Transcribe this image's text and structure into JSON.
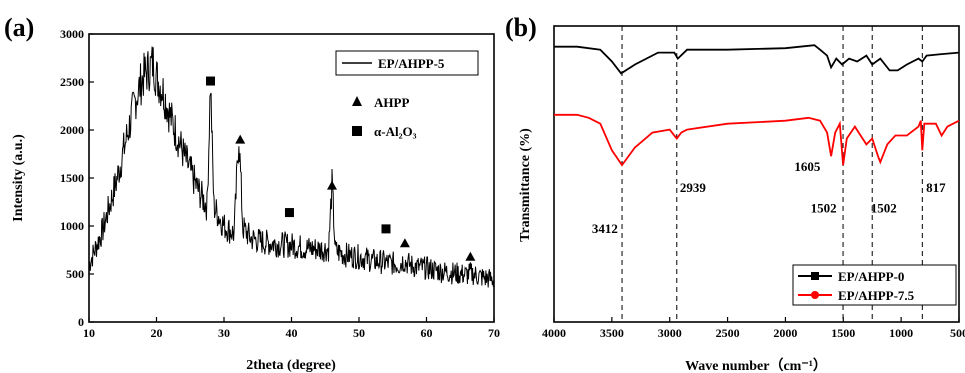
{
  "chart_data": [
    {
      "panel": "(a)",
      "type": "line",
      "xlabel": "2theta (degree)",
      "ylabel": "Intensity (a.u.)",
      "xlim": [
        10,
        70
      ],
      "ylim": [
        0,
        3000
      ],
      "xticks": [
        10,
        20,
        30,
        40,
        50,
        60,
        70
      ],
      "yticks": [
        0,
        500,
        1000,
        1500,
        2000,
        2500,
        3000
      ],
      "legend": {
        "position": "top-right",
        "entries": [
          "EP/AHPP-5"
        ]
      },
      "marker_legend": [
        {
          "symbol": "triangle",
          "label": "AHPP"
        },
        {
          "symbol": "square",
          "label": "α-Al₂O₃"
        }
      ],
      "series": [
        {
          "name": "EP/AHPP-5",
          "color": "#000000",
          "x": [
            10,
            12,
            14,
            16,
            17,
            18,
            19,
            19.5,
            20,
            21,
            22,
            24,
            26,
            27.5,
            28,
            28.5,
            30,
            31.5,
            32.2,
            32.8,
            34,
            36,
            38,
            40,
            42,
            44,
            45.5,
            46,
            46.5,
            48,
            50,
            52,
            54,
            56,
            56.5,
            58,
            60,
            62,
            64,
            66,
            66.5,
            68,
            70
          ],
          "values": [
            600,
            950,
            1450,
            2050,
            2350,
            2550,
            2650,
            2700,
            2550,
            2400,
            2150,
            1750,
            1400,
            1200,
            2500,
            1200,
            1000,
            920,
            1950,
            980,
            870,
            830,
            810,
            800,
            770,
            760,
            760,
            1430,
            740,
            700,
            680,
            640,
            620,
            600,
            640,
            580,
            560,
            530,
            510,
            490,
            510,
            470,
            440
          ]
        }
      ],
      "peak_markers": [
        {
          "symbol": "square",
          "x": 28,
          "y": 2510
        },
        {
          "symbol": "triangle",
          "x": 32.4,
          "y": 1900
        },
        {
          "symbol": "triangle",
          "x": 46,
          "y": 1420
        },
        {
          "symbol": "square",
          "x": 39.7,
          "y": 1140
        },
        {
          "symbol": "square",
          "x": 54,
          "y": 970
        },
        {
          "symbol": "triangle",
          "x": 56.8,
          "y": 820
        },
        {
          "symbol": "triangle",
          "x": 66.5,
          "y": 680
        }
      ]
    },
    {
      "panel": "(b)",
      "type": "line",
      "xlabel": "Wave number（cm⁻¹）",
      "ylabel": "Transmittance (%)",
      "xlim": [
        4000,
        500
      ],
      "xticks": [
        4000,
        3500,
        3000,
        2500,
        2000,
        1500,
        1000,
        500
      ],
      "ylim": [
        0,
        100
      ],
      "legend": {
        "position": "bottom-right",
        "entries": [
          "EP/AHPP-0",
          "EP/AHPP-7.5"
        ]
      },
      "reference_lines": [
        3412,
        2939,
        1502,
        1250,
        817
      ],
      "annotations": [
        {
          "text": "3412",
          "x": 3560,
          "y": 30
        },
        {
          "text": "2939",
          "x": 2800,
          "y": 44
        },
        {
          "text": "1605",
          "x": 1810,
          "y": 51
        },
        {
          "text": "1502",
          "x": 1670,
          "y": 37
        },
        {
          "text": "1502",
          "x": 1150,
          "y": 37
        },
        {
          "text": "817",
          "x": 700,
          "y": 44
        }
      ],
      "series": [
        {
          "name": "EP/AHPP-0",
          "color": "#000000",
          "x": [
            4000,
            3800,
            3600,
            3500,
            3420,
            3300,
            3100,
            2960,
            2930,
            2850,
            2500,
            2000,
            1750,
            1700,
            1640,
            1605,
            1560,
            1510,
            1450,
            1380,
            1300,
            1250,
            1180,
            1100,
            1030,
            950,
            850,
            817,
            780,
            650,
            500
          ],
          "values": [
            93,
            93,
            92,
            88,
            84,
            87,
            91,
            91,
            89,
            92,
            92,
            92.5,
            93.5,
            92,
            90,
            86,
            89,
            87,
            89,
            88,
            90,
            87,
            89,
            85,
            85,
            87,
            89,
            88,
            90,
            90.5,
            91
          ]
        },
        {
          "name": "EP/AHPP-7.5",
          "color": "#ff0000",
          "x": [
            4000,
            3800,
            3700,
            3600,
            3500,
            3412,
            3300,
            3150,
            3000,
            2960,
            2939,
            2900,
            2850,
            2500,
            2000,
            1800,
            1700,
            1640,
            1605,
            1570,
            1530,
            1502,
            1470,
            1400,
            1350,
            1300,
            1250,
            1200,
            1180,
            1120,
            1050,
            950,
            850,
            830,
            817,
            800,
            700,
            650,
            600,
            500
          ],
          "values": [
            70,
            70,
            69,
            67,
            58,
            53,
            59,
            64,
            65,
            63,
            62,
            64,
            65,
            67,
            68,
            69,
            68,
            64,
            56,
            64,
            67,
            53,
            62,
            66,
            63,
            60,
            62,
            56,
            54,
            60,
            63,
            63,
            66,
            68,
            58,
            67,
            67,
            63,
            66,
            68
          ]
        }
      ]
    }
  ]
}
